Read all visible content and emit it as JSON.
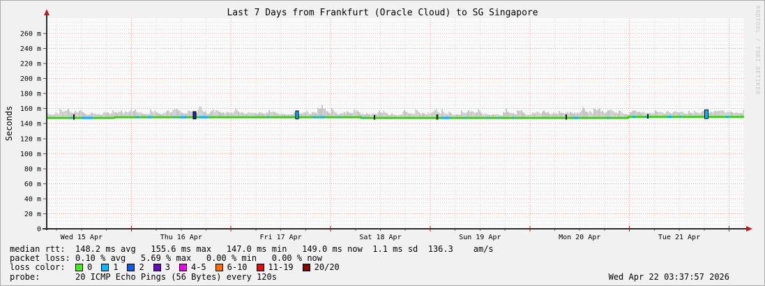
{
  "title": "Last 7 Days from Frankfurt (Oracle Cloud) to SG Singapore",
  "watermark": "RRDTOOL / TOBI OETIKER",
  "y_axis": {
    "label": "Seconds",
    "ticks": [
      "260 m",
      "240 m",
      "220 m",
      "200 m",
      "180 m",
      "160 m",
      "140 m",
      "120 m",
      "100 m",
      "80 m",
      "60 m",
      "40 m",
      "20 m",
      "0"
    ]
  },
  "x_axis": {
    "ticks": [
      "Wed 15 Apr",
      "Thu 16 Apr",
      "Fri 17 Apr",
      "Sat 18 Apr",
      "Sun 19 Apr",
      "Mon 20 Apr",
      "Tue 21 Apr"
    ]
  },
  "chart_data": {
    "type": "line",
    "subtype": "smokeping-latency",
    "title": "Last 7 Days from Frankfurt (Oracle Cloud) to SG Singapore",
    "ylabel": "Seconds",
    "yunit": "ms",
    "ylim_ms": [
      0,
      270
    ],
    "y_major_tick_ms": 20,
    "y_minor_tick_ms": 5,
    "x_span_days": 7,
    "x_start_offset_hours": 3.617,
    "x_day_labels": [
      "Wed 15 Apr",
      "Thu 16 Apr",
      "Fri 17 Apr",
      "Sat 18 Apr",
      "Sun 19 Apr",
      "Mon 20 Apr",
      "Tue 21 Apr"
    ],
    "series": [
      {
        "name": "median rtt",
        "color": "#30d500",
        "avg_ms": 148.2,
        "max_ms": 155.6,
        "min_ms": 147.0,
        "now_ms": 149.0,
        "sd_ms": 1.1,
        "am_s": 136.3,
        "segments": [
          {
            "from": 0.0,
            "to": 0.097,
            "ms": 147.6
          },
          {
            "from": 0.097,
            "to": 0.451,
            "ms": 148.6
          },
          {
            "from": 0.451,
            "to": 0.834,
            "ms": 147.6
          },
          {
            "from": 0.834,
            "to": 1.0,
            "ms": 149.0
          }
        ]
      },
      {
        "name": "smoke (ping spread)",
        "color": "#cccccc",
        "typical_top_ms": 158,
        "peak_ms": 172
      }
    ],
    "packet_loss": {
      "avg_pct": 0.1,
      "max_pct": 5.69,
      "min_pct": 0.0,
      "now_pct": 0.0
    },
    "loss_tick_color": "#00b8ff",
    "loss_events": [
      {
        "frac": 0.039,
        "color": "#151515",
        "h": 5,
        "w": 2
      },
      {
        "frac": 0.058,
        "color": "#00b8ff",
        "h": 3.4,
        "w": 16,
        "inline": true
      },
      {
        "frac": 0.212,
        "color": "#1330bb",
        "h": 8,
        "w": 4,
        "outline": true
      },
      {
        "frac": 0.225,
        "color": "#00b8ff",
        "h": 3.4,
        "w": 13,
        "inline": true
      },
      {
        "frac": 0.359,
        "color": "#00b8ff",
        "h": 9,
        "w": 4,
        "outline": true
      },
      {
        "frac": 0.47,
        "color": "#151515",
        "h": 4,
        "w": 2
      },
      {
        "frac": 0.56,
        "color": "#174a17",
        "h": 5,
        "w": 3
      },
      {
        "frac": 0.745,
        "color": "#151515",
        "h": 5,
        "w": 2
      },
      {
        "frac": 0.862,
        "color": "#151515",
        "h": 4,
        "w": 2
      },
      {
        "frac": 0.946,
        "color": "#00b8ff",
        "h": 10,
        "w": 5,
        "outline": true
      }
    ],
    "grid": {
      "major_color": "#ef9a9a",
      "minor_color": "#d9d9d9",
      "v_minor_hours": 6,
      "v_major_hours": 24
    },
    "axis_color": "#2a2a2a",
    "arrow_color": "#b22222",
    "plot_bg": "#fafafa"
  },
  "legend": {
    "rows": {
      "median_label": "median rtt:",
      "median_value": "148.2 ms avg   155.6 ms max   147.0 ms min   149.0 ms now  1.1 ms sd  136.3    am/s",
      "loss_label": "packet loss:",
      "loss_value": "0.10 % avg   5.69 % max   0.00 % min   0.00 % now",
      "loss_color_label": "loss color:",
      "probe_label": "probe:",
      "probe_value": "20 ICMP Echo Pings (56 Bytes) every 120s"
    },
    "loss_colors": [
      {
        "label": "0",
        "color": "#2bff00"
      },
      {
        "label": "1",
        "color": "#00b8ff"
      },
      {
        "label": "2",
        "color": "#0059ff"
      },
      {
        "label": "3",
        "color": "#7000d8"
      },
      {
        "label": "4-5",
        "color": "#ee00ee"
      },
      {
        "label": "6-10",
        "color": "#ff6a00"
      },
      {
        "label": "11-19",
        "color": "#ff0000"
      },
      {
        "label": "20/20",
        "color": "#910000"
      }
    ],
    "timestamp": "Wed Apr 22 03:37:57 2026"
  }
}
